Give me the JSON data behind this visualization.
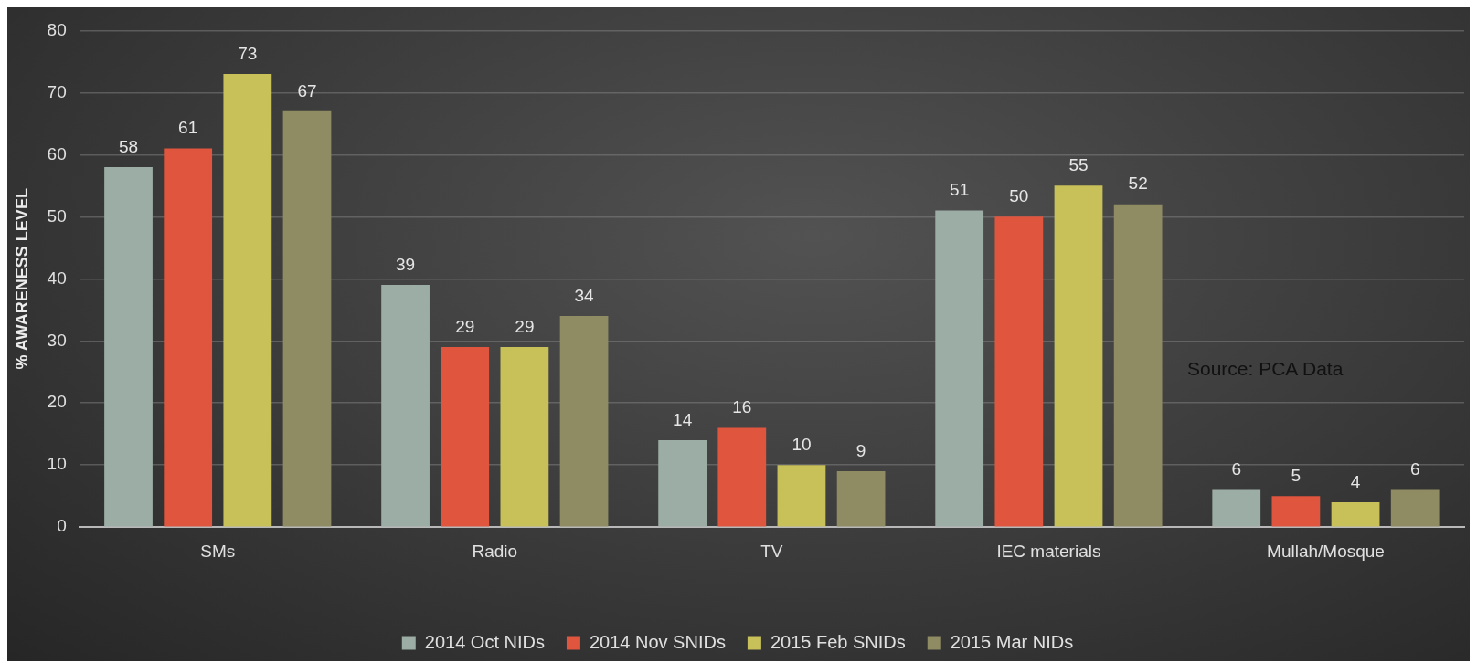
{
  "chart_data": {
    "type": "bar",
    "ylabel": "% AWARENESS LEVEL",
    "categories": [
      "SMs",
      "Radio",
      "TV",
      "IEC materials",
      "Mullah/Mosque"
    ],
    "series": [
      {
        "name": "2014 Oct NIDs",
        "color": "#9cada5",
        "values": [
          58,
          39,
          14,
          51,
          6
        ]
      },
      {
        "name": "2014 Nov SNIDs",
        "color": "#e0553e",
        "values": [
          61,
          29,
          16,
          50,
          5
        ]
      },
      {
        "name": "2015 Feb SNIDs",
        "color": "#c8c15a",
        "values": [
          73,
          29,
          10,
          55,
          4
        ]
      },
      {
        "name": "2015 Mar NIDs",
        "color": "#8f8b62",
        "values": [
          67,
          34,
          9,
          52,
          6
        ]
      }
    ],
    "ylim": [
      0,
      80
    ],
    "yticks": [
      0,
      10,
      20,
      30,
      40,
      50,
      60,
      70,
      80
    ],
    "grid": "y",
    "legend": "bottom",
    "data_labels": true,
    "annotations": [
      "Source: PCA Data"
    ]
  }
}
